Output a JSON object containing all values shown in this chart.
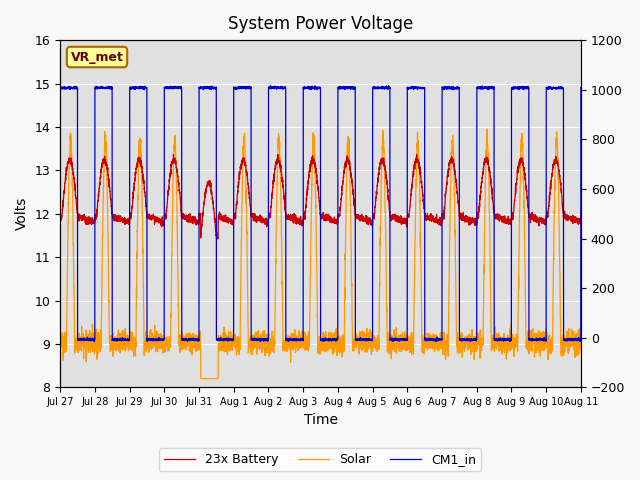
{
  "title": "System Power Voltage",
  "xlabel": "Time",
  "ylabel": "Volts",
  "ylim_left": [
    8.0,
    16.0
  ],
  "ylim_right": [
    -200,
    1200
  ],
  "yticks_left": [
    8.0,
    9.0,
    10.0,
    11.0,
    12.0,
    13.0,
    14.0,
    15.0,
    16.0
  ],
  "yticks_right": [
    -200,
    0,
    200,
    400,
    600,
    800,
    1000,
    1200
  ],
  "xtick_positions": [
    0,
    1,
    2,
    3,
    4,
    5,
    6,
    7,
    8,
    9,
    10,
    11,
    12,
    13,
    14,
    15
  ],
  "xtick_labels": [
    "Jul 27",
    "Jul 28",
    "Jul 29",
    "Jul 30",
    "Jul 31",
    "Aug 1",
    "Aug 2",
    "Aug 3",
    "Aug 4",
    "Aug 5",
    "Aug 6",
    "Aug 7",
    "Aug 8",
    "Aug 9",
    "Aug 10",
    "Aug 11"
  ],
  "legend_labels": [
    "23x Battery",
    "Solar",
    "CM1_in"
  ],
  "battery_color": "#cc0000",
  "solar_color": "#ff9900",
  "cm1_color": "#0000cc",
  "annotation_text": "VR_met",
  "fig_facecolor": "#f8f8f8",
  "axes_facecolor": "#e0e0e0",
  "num_days": 15,
  "n_points": 4000
}
